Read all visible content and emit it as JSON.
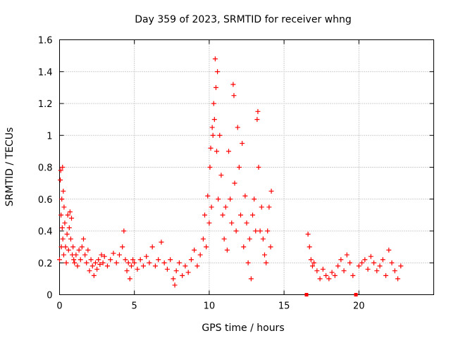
{
  "chart_data": {
    "type": "scatter",
    "title": "Day 359 of 2023, SRMTID for receiver whng",
    "xlabel": "GPS time / hours",
    "ylabel": "SRMTID / TECUs",
    "xlim": [
      0,
      25
    ],
    "ylim": [
      0,
      1.6
    ],
    "xticks": [
      0,
      5,
      10,
      15,
      20
    ],
    "xtick_labels": [
      "0",
      "5",
      "10",
      "15",
      "20"
    ],
    "yticks": [
      0,
      0.2,
      0.4,
      0.6,
      0.8,
      1.0,
      1.2,
      1.4,
      1.6
    ],
    "ytick_labels": [
      "0",
      "0.2",
      "0.4",
      "0.6",
      "0.8",
      "1",
      "1.2",
      "1.4",
      "1.6"
    ],
    "grid": true,
    "marker": "plus",
    "series": [
      {
        "name": "SRMTID",
        "color": "#ff0000",
        "points": [
          [
            0.0,
            0.22
          ],
          [
            0.05,
            0.72
          ],
          [
            0.08,
            0.78
          ],
          [
            0.1,
            0.5
          ],
          [
            0.12,
            0.3
          ],
          [
            0.15,
            0.6
          ],
          [
            0.18,
            0.42
          ],
          [
            0.2,
            0.8
          ],
          [
            0.22,
            0.35
          ],
          [
            0.25,
            0.65
          ],
          [
            0.28,
            0.25
          ],
          [
            0.3,
            0.55
          ],
          [
            0.35,
            0.45
          ],
          [
            0.4,
            0.3
          ],
          [
            0.45,
            0.2
          ],
          [
            0.5,
            0.38
          ],
          [
            0.55,
            0.5
          ],
          [
            0.6,
            0.28
          ],
          [
            0.65,
            0.42
          ],
          [
            0.7,
            0.52
          ],
          [
            0.75,
            0.35
          ],
          [
            0.8,
            0.48
          ],
          [
            0.85,
            0.25
          ],
          [
            0.9,
            0.3
          ],
          [
            0.95,
            0.22
          ],
          [
            1.0,
            0.2
          ],
          [
            1.1,
            0.25
          ],
          [
            1.2,
            0.18
          ],
          [
            1.3,
            0.28
          ],
          [
            1.4,
            0.22
          ],
          [
            1.5,
            0.3
          ],
          [
            1.6,
            0.35
          ],
          [
            1.7,
            0.25
          ],
          [
            1.8,
            0.2
          ],
          [
            1.9,
            0.28
          ],
          [
            2.0,
            0.15
          ],
          [
            2.1,
            0.22
          ],
          [
            2.2,
            0.18
          ],
          [
            2.3,
            0.12
          ],
          [
            2.4,
            0.2
          ],
          [
            2.5,
            0.16
          ],
          [
            2.6,
            0.22
          ],
          [
            2.7,
            0.19
          ],
          [
            2.8,
            0.25
          ],
          [
            2.9,
            0.2
          ],
          [
            3.0,
            0.24
          ],
          [
            3.2,
            0.18
          ],
          [
            3.4,
            0.22
          ],
          [
            3.6,
            0.26
          ],
          [
            3.8,
            0.2
          ],
          [
            4.0,
            0.25
          ],
          [
            4.2,
            0.3
          ],
          [
            4.3,
            0.4
          ],
          [
            4.4,
            0.22
          ],
          [
            4.5,
            0.15
          ],
          [
            4.6,
            0.2
          ],
          [
            4.7,
            0.1
          ],
          [
            4.8,
            0.18
          ],
          [
            4.9,
            0.22
          ],
          [
            5.0,
            0.2
          ],
          [
            5.2,
            0.16
          ],
          [
            5.4,
            0.22
          ],
          [
            5.6,
            0.18
          ],
          [
            5.8,
            0.24
          ],
          [
            6.0,
            0.2
          ],
          [
            6.2,
            0.3
          ],
          [
            6.4,
            0.18
          ],
          [
            6.6,
            0.22
          ],
          [
            6.8,
            0.33
          ],
          [
            7.0,
            0.2
          ],
          [
            7.2,
            0.16
          ],
          [
            7.4,
            0.22
          ],
          [
            7.6,
            0.1
          ],
          [
            7.7,
            0.06
          ],
          [
            7.8,
            0.15
          ],
          [
            8.0,
            0.2
          ],
          [
            8.2,
            0.12
          ],
          [
            8.4,
            0.18
          ],
          [
            8.6,
            0.14
          ],
          [
            8.8,
            0.22
          ],
          [
            9.0,
            0.28
          ],
          [
            9.2,
            0.18
          ],
          [
            9.4,
            0.25
          ],
          [
            9.6,
            0.35
          ],
          [
            9.7,
            0.5
          ],
          [
            9.8,
            0.3
          ],
          [
            9.9,
            0.62
          ],
          [
            10.0,
            0.45
          ],
          [
            10.05,
            0.8
          ],
          [
            10.1,
            0.92
          ],
          [
            10.15,
            0.55
          ],
          [
            10.2,
            1.05
          ],
          [
            10.25,
            1.0
          ],
          [
            10.3,
            1.2
          ],
          [
            10.35,
            1.1
          ],
          [
            10.4,
            1.48
          ],
          [
            10.45,
            1.3
          ],
          [
            10.5,
            0.9
          ],
          [
            10.55,
            1.4
          ],
          [
            10.6,
            0.6
          ],
          [
            10.7,
            1.0
          ],
          [
            10.8,
            0.75
          ],
          [
            10.9,
            0.5
          ],
          [
            11.0,
            0.35
          ],
          [
            11.1,
            0.55
          ],
          [
            11.2,
            0.28
          ],
          [
            11.3,
            0.9
          ],
          [
            11.4,
            0.6
          ],
          [
            11.5,
            0.45
          ],
          [
            11.6,
            1.32
          ],
          [
            11.65,
            1.25
          ],
          [
            11.7,
            0.7
          ],
          [
            11.8,
            0.4
          ],
          [
            11.9,
            1.05
          ],
          [
            12.0,
            0.8
          ],
          [
            12.1,
            0.5
          ],
          [
            12.2,
            0.95
          ],
          [
            12.3,
            0.3
          ],
          [
            12.4,
            0.62
          ],
          [
            12.5,
            0.45
          ],
          [
            12.6,
            0.2
          ],
          [
            12.7,
            0.35
          ],
          [
            12.8,
            0.1
          ],
          [
            12.9,
            0.5
          ],
          [
            13.0,
            0.6
          ],
          [
            13.1,
            0.4
          ],
          [
            13.2,
            1.1
          ],
          [
            13.25,
            1.15
          ],
          [
            13.3,
            0.8
          ],
          [
            13.4,
            0.4
          ],
          [
            13.5,
            0.55
          ],
          [
            13.6,
            0.35
          ],
          [
            13.7,
            0.25
          ],
          [
            13.8,
            0.2
          ],
          [
            13.9,
            0.4
          ],
          [
            14.0,
            0.55
          ],
          [
            14.1,
            0.3
          ],
          [
            14.15,
            0.65
          ],
          [
            16.5,
            0.0
          ],
          [
            16.6,
            0.38
          ],
          [
            16.7,
            0.3
          ],
          [
            16.8,
            0.22
          ],
          [
            16.9,
            0.18
          ],
          [
            17.0,
            0.2
          ],
          [
            17.2,
            0.15
          ],
          [
            17.4,
            0.1
          ],
          [
            17.6,
            0.16
          ],
          [
            17.8,
            0.12
          ],
          [
            18.0,
            0.1
          ],
          [
            18.2,
            0.14
          ],
          [
            18.4,
            0.12
          ],
          [
            18.6,
            0.18
          ],
          [
            18.8,
            0.22
          ],
          [
            19.0,
            0.15
          ],
          [
            19.2,
            0.25
          ],
          [
            19.4,
            0.2
          ],
          [
            19.6,
            0.12
          ],
          [
            19.8,
            0.0
          ],
          [
            20.0,
            0.18
          ],
          [
            20.2,
            0.2
          ],
          [
            20.4,
            0.22
          ],
          [
            20.6,
            0.16
          ],
          [
            20.8,
            0.24
          ],
          [
            21.0,
            0.2
          ],
          [
            21.2,
            0.15
          ],
          [
            21.4,
            0.18
          ],
          [
            21.6,
            0.22
          ],
          [
            21.8,
            0.12
          ],
          [
            22.0,
            0.28
          ],
          [
            22.2,
            0.2
          ],
          [
            22.4,
            0.15
          ],
          [
            22.6,
            0.1
          ],
          [
            22.8,
            0.18
          ]
        ]
      }
    ]
  }
}
